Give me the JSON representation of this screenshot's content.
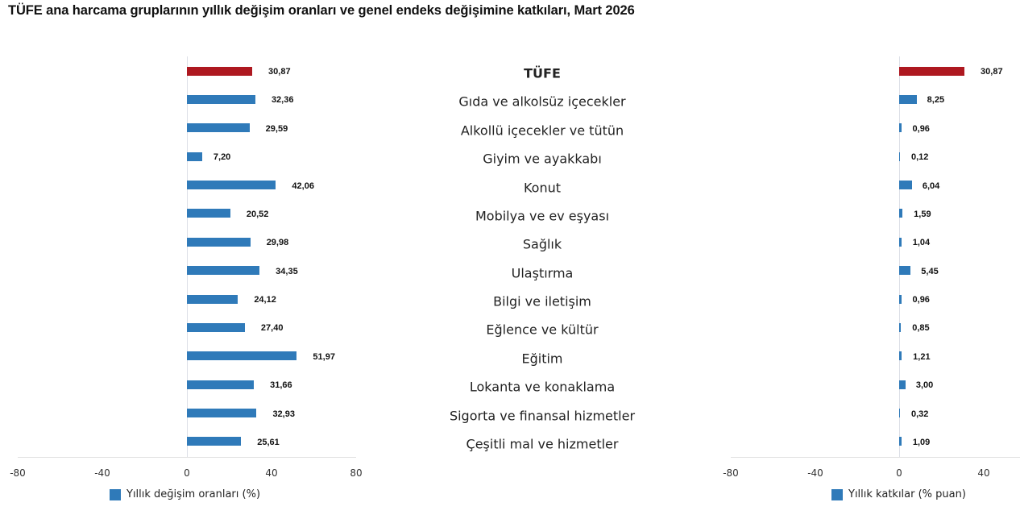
{
  "title": "TÜFE ana harcama gruplarının yıllık değişim oranları ve genel endeks değişimine katkıları, Mart 2026",
  "colors": {
    "highlight": "#ae1820",
    "series": "#2f7ab9",
    "axis": "#dcdfe6"
  },
  "left_axis": {
    "ticks": [
      "-80",
      "-40",
      "0",
      "40",
      "80"
    ],
    "legend": "Yıllık değişim oranları (%)"
  },
  "right_axis": {
    "ticks": [
      "-80",
      "-40",
      "0",
      "40"
    ],
    "legend": "Yıllık katkılar (% puan)"
  },
  "rows": [
    {
      "category": "TÜFE",
      "annual": "30,87",
      "contribution": "30,87"
    },
    {
      "category": "Gıda ve alkolsüz içecekler",
      "annual": "32,36",
      "contribution": "8,25"
    },
    {
      "category": "Alkollü içecekler ve tütün",
      "annual": "29,59",
      "contribution": "0,96"
    },
    {
      "category": "Giyim ve ayakkabı",
      "annual": "7,20",
      "contribution": "0,12"
    },
    {
      "category": "Konut",
      "annual": "42,06",
      "contribution": "6,04"
    },
    {
      "category": "Mobilya ve ev eşyası",
      "annual": "20,52",
      "contribution": "1,59"
    },
    {
      "category": "Sağlık",
      "annual": "29,98",
      "contribution": "1,04"
    },
    {
      "category": "Ulaştırma",
      "annual": "34,35",
      "contribution": "5,45"
    },
    {
      "category": "Bilgi ve iletişim",
      "annual": "24,12",
      "contribution": "0,96"
    },
    {
      "category": "Eğlence ve kültür",
      "annual": "27,40",
      "contribution": "0,85"
    },
    {
      "category": "Eğitim",
      "annual": "51,97",
      "contribution": "1,21"
    },
    {
      "category": "Lokanta ve konaklama",
      "annual": "31,66",
      "contribution": "3,00"
    },
    {
      "category": "Sigorta ve finansal hizmetler",
      "annual": "32,93",
      "contribution": "0,32"
    },
    {
      "category": "Çeşitli mal ve hizmetler",
      "annual": "25,61",
      "contribution": "1,09"
    }
  ],
  "chart_data": [
    {
      "type": "bar",
      "orientation": "horizontal",
      "title": "TÜFE ana harcama gruplarının yıllık değişim oranları ve genel endeks değişimine katkıları, Mart 2026",
      "categories": [
        "TÜFE",
        "Gıda ve alkolsüz içecekler",
        "Alkollü içecekler ve tütün",
        "Giyim ve ayakkabı",
        "Konut",
        "Mobilya ve ev eşyası",
        "Sağlık",
        "Ulaştırma",
        "Bilgi ve iletişim",
        "Eğlence ve kültür",
        "Eğitim",
        "Lokanta ve konaklama",
        "Sigorta ve finansal hizmetler",
        "Çeşitli mal ve hizmetler"
      ],
      "series": [
        {
          "name": "Yıllık değişim oranları (%)",
          "values": [
            30.87,
            32.36,
            29.59,
            7.2,
            42.06,
            20.52,
            29.98,
            34.35,
            24.12,
            27.4,
            51.97,
            31.66,
            32.93,
            25.61
          ]
        }
      ],
      "xlim": [
        -80,
        80
      ],
      "xticks": [
        -80,
        -40,
        0,
        40,
        80
      ],
      "highlight": {
        "category": "TÜFE",
        "color": "#ae1820"
      },
      "data_labels": true,
      "grid": false,
      "legend_position": "bottom"
    },
    {
      "type": "bar",
      "orientation": "horizontal",
      "categories": [
        "TÜFE",
        "Gıda ve alkolsüz içecekler",
        "Alkollü içecekler ve tütün",
        "Giyim ve ayakkabı",
        "Konut",
        "Mobilya ve ev eşyası",
        "Sağlık",
        "Ulaştırma",
        "Bilgi ve iletişim",
        "Eğlence ve kültür",
        "Eğitim",
        "Lokanta ve konaklama",
        "Sigorta ve finansal hizmetler",
        "Çeşitli mal ve hizmetler"
      ],
      "series": [
        {
          "name": "Yıllık katkılar (% puan)",
          "values": [
            30.87,
            8.25,
            0.96,
            0.12,
            6.04,
            1.59,
            1.04,
            5.45,
            0.96,
            0.85,
            1.21,
            3.0,
            0.32,
            1.09
          ]
        }
      ],
      "xlim": [
        -80,
        57
      ],
      "xticks": [
        -80,
        -40,
        0,
        40
      ],
      "highlight": {
        "category": "TÜFE",
        "color": "#ae1820"
      },
      "data_labels": true,
      "grid": false,
      "legend_position": "bottom"
    }
  ]
}
